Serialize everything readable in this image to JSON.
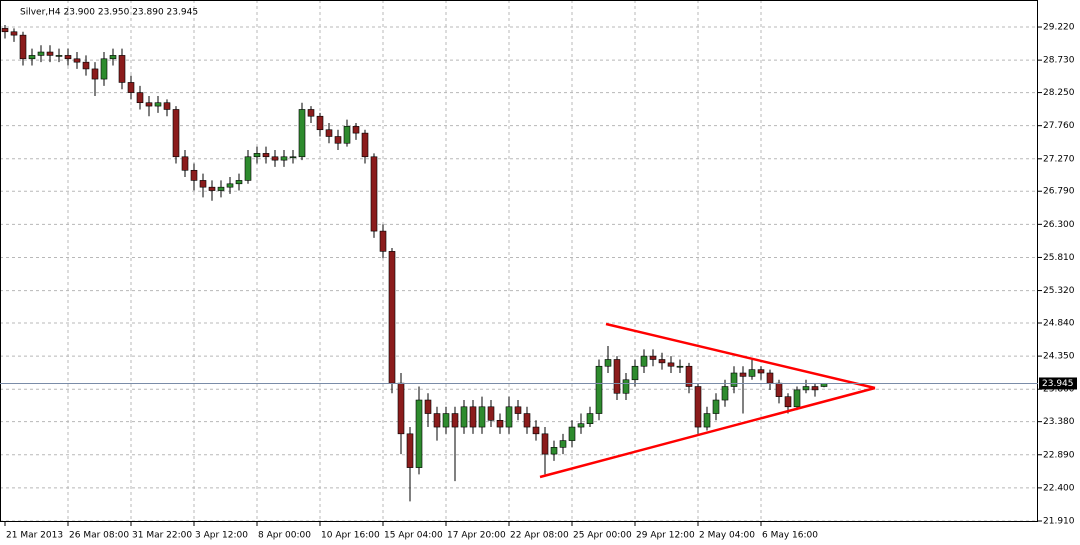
{
  "chart_data": {
    "type": "candlestick",
    "title": "Silver,H4 23.900 23.950 23.890 23.945",
    "categories": [
      "21 Mar 2013",
      null,
      null,
      null,
      null,
      null,
      null,
      "26 Mar 08:00",
      null,
      null,
      null,
      null,
      null,
      null,
      "31 Mar 22:00",
      null,
      null,
      null,
      null,
      null,
      null,
      "3 Apr 12:00",
      null,
      null,
      null,
      null,
      null,
      null,
      "8 Apr 00:00",
      null,
      null,
      null,
      null,
      null,
      null,
      "10 Apr 16:00",
      null,
      null,
      null,
      null,
      null,
      null,
      "15 Apr 04:00",
      null,
      null,
      null,
      null,
      null,
      null,
      "17 Apr 20:00",
      null,
      null,
      null,
      null,
      null,
      null,
      "22 Apr 08:00",
      null,
      null,
      null,
      null,
      null,
      null,
      "25 Apr 00:00",
      null,
      null,
      null,
      null,
      null,
      null,
      "29 Apr 12:00",
      null,
      null,
      null,
      null,
      null,
      null,
      "2 May 04:00",
      null,
      null,
      null,
      null,
      null,
      null,
      "6 May 16:00",
      null,
      null,
      null,
      null,
      null,
      null,
      null
    ],
    "open": [
      29.2,
      29.15,
      29.1,
      28.75,
      28.8,
      28.85,
      28.8,
      28.8,
      28.75,
      28.7,
      28.6,
      28.45,
      28.75,
      28.8,
      28.4,
      28.25,
      28.1,
      28.05,
      28.1,
      28.0,
      27.3,
      27.1,
      26.95,
      26.85,
      26.8,
      26.85,
      26.9,
      26.95,
      27.3,
      27.35,
      27.3,
      27.25,
      27.3,
      27.3,
      28.0,
      27.9,
      27.7,
      27.6,
      27.5,
      27.75,
      27.65,
      27.3,
      26.2,
      25.9,
      23.95,
      23.2,
      22.7,
      23.7,
      23.5,
      23.3,
      23.5,
      23.3,
      23.6,
      23.3,
      23.6,
      23.4,
      23.3,
      23.6,
      23.5,
      23.3,
      23.2,
      22.9,
      23.0,
      23.1,
      23.3,
      23.35,
      23.5,
      24.2,
      24.3,
      23.8,
      24.0,
      24.2,
      24.35,
      24.3,
      24.25,
      24.2,
      24.2,
      23.9,
      23.3,
      23.5,
      23.7,
      23.9,
      24.1,
      24.05,
      24.15,
      24.1,
      23.95,
      23.75,
      23.6,
      23.85,
      23.9,
      23.9
    ],
    "high": [
      29.25,
      29.2,
      29.15,
      28.9,
      28.95,
      28.95,
      28.9,
      28.9,
      28.85,
      28.8,
      28.7,
      28.85,
      28.9,
      28.9,
      28.5,
      28.35,
      28.2,
      28.2,
      28.15,
      28.05,
      27.4,
      27.2,
      27.05,
      26.95,
      26.95,
      27.0,
      27.05,
      27.4,
      27.45,
      27.45,
      27.4,
      27.4,
      27.4,
      28.1,
      28.05,
      27.95,
      27.8,
      27.7,
      27.85,
      27.8,
      27.7,
      27.35,
      26.3,
      25.95,
      24.1,
      23.3,
      23.9,
      23.8,
      23.6,
      23.6,
      23.6,
      23.7,
      23.7,
      23.75,
      23.7,
      23.5,
      23.75,
      23.7,
      23.6,
      23.4,
      23.3,
      23.1,
      23.2,
      23.4,
      23.5,
      23.6,
      24.3,
      24.5,
      24.35,
      24.1,
      24.3,
      24.45,
      24.45,
      24.4,
      24.35,
      24.3,
      24.25,
      23.95,
      23.6,
      23.8,
      24.0,
      24.2,
      24.2,
      24.3,
      24.2,
      24.15,
      24.0,
      23.8,
      23.9,
      24.0,
      23.95,
      23.95
    ],
    "low": [
      29.05,
      29.0,
      28.65,
      28.65,
      28.7,
      28.7,
      28.7,
      28.65,
      28.6,
      28.5,
      28.2,
      28.35,
      28.65,
      28.3,
      28.15,
      28.0,
      27.9,
      27.95,
      27.9,
      27.2,
      27.0,
      26.8,
      26.7,
      26.65,
      26.7,
      26.75,
      26.8,
      26.9,
      27.2,
      27.2,
      27.15,
      27.15,
      27.2,
      27.25,
      27.8,
      27.6,
      27.5,
      27.4,
      27.45,
      27.55,
      27.2,
      26.1,
      25.8,
      23.8,
      22.9,
      22.2,
      22.6,
      23.3,
      23.1,
      23.2,
      22.5,
      23.2,
      23.2,
      23.2,
      23.3,
      23.2,
      23.2,
      23.4,
      23.2,
      23.1,
      22.6,
      22.8,
      22.9,
      23.0,
      23.2,
      23.3,
      23.4,
      24.1,
      23.7,
      23.7,
      23.9,
      24.1,
      24.2,
      24.15,
      24.1,
      24.1,
      23.8,
      23.2,
      23.25,
      23.4,
      23.6,
      23.8,
      23.5,
      24.0,
      24.0,
      23.85,
      23.65,
      23.5,
      23.55,
      23.8,
      23.75,
      23.89
    ],
    "close": [
      29.15,
      29.1,
      28.75,
      28.8,
      28.85,
      28.8,
      28.8,
      28.75,
      28.7,
      28.6,
      28.45,
      28.75,
      28.8,
      28.4,
      28.25,
      28.1,
      28.05,
      28.1,
      28.0,
      27.3,
      27.1,
      26.95,
      26.85,
      26.8,
      26.85,
      26.9,
      26.95,
      27.3,
      27.35,
      27.3,
      27.25,
      27.3,
      27.3,
      28.0,
      27.9,
      27.7,
      27.6,
      27.5,
      27.75,
      27.65,
      27.3,
      26.2,
      25.9,
      23.95,
      23.2,
      22.7,
      23.7,
      23.5,
      23.3,
      23.5,
      23.3,
      23.6,
      23.3,
      23.6,
      23.4,
      23.3,
      23.6,
      23.5,
      23.3,
      23.2,
      22.9,
      23.0,
      23.1,
      23.3,
      23.35,
      23.5,
      24.2,
      24.3,
      23.8,
      24.0,
      24.2,
      24.35,
      24.3,
      24.25,
      24.2,
      24.2,
      23.9,
      23.3,
      23.5,
      23.7,
      23.9,
      24.1,
      24.05,
      24.15,
      24.1,
      23.95,
      23.75,
      23.6,
      23.85,
      23.9,
      23.85,
      23.945
    ],
    "up_color": "#2e8b2e",
    "down_color": "#8b1c1c",
    "ylim": [
      21.895,
      29.62
    ],
    "yticks": [
      {
        "value": 29.22,
        "label": "29.220"
      },
      {
        "value": 28.73,
        "label": "28.730"
      },
      {
        "value": 28.25,
        "label": "28.250"
      },
      {
        "value": 27.76,
        "label": "27.760"
      },
      {
        "value": 27.27,
        "label": "27.270"
      },
      {
        "value": 26.79,
        "label": "26.790"
      },
      {
        "value": 26.3,
        "label": "26.300"
      },
      {
        "value": 25.81,
        "label": "25.810"
      },
      {
        "value": 25.32,
        "label": "25.320"
      },
      {
        "value": 24.84,
        "label": "24.840"
      },
      {
        "value": 24.35,
        "label": "24.350"
      },
      {
        "value": 23.86,
        "label": "23.860"
      },
      {
        "value": 23.38,
        "label": "23.380"
      },
      {
        "value": 22.89,
        "label": "22.890"
      },
      {
        "value": 22.4,
        "label": "22.400"
      },
      {
        "value": 21.91,
        "label": "21.910"
      }
    ],
    "current_price": {
      "value": 23.945,
      "label": "23.945"
    },
    "grid": true
  }
}
